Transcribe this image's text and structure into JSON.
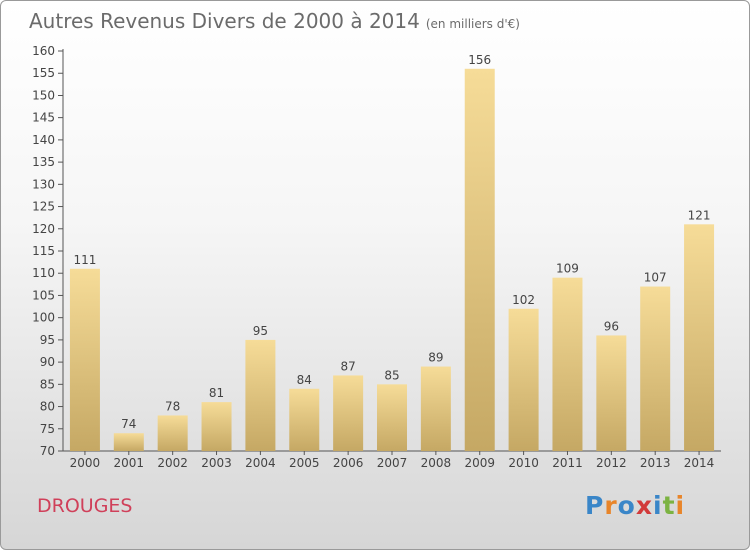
{
  "header": {
    "title": "Autres Revenus Divers de 2000 à 2014",
    "unit": "(en milliers d'€)"
  },
  "footer": {
    "commune": "DROUGES",
    "logo_text": "Proxiti"
  },
  "colors": {
    "bar_light": "#f6dc98",
    "bar_dark": "#c5a864",
    "commune": "#d0405a",
    "logo_letters": [
      "#3a86c8",
      "#e8852a",
      "#3a86c8",
      "#d23a3a",
      "#3a86c8",
      "#7cb342",
      "#e8852a"
    ]
  },
  "chart_data": {
    "type": "bar",
    "title": "Autres Revenus Divers de 2000 à 2014",
    "subtitle": "(en milliers d'€)",
    "categories": [
      "2000",
      "2001",
      "2002",
      "2003",
      "2004",
      "2005",
      "2006",
      "2007",
      "2008",
      "2009",
      "2010",
      "2011",
      "2012",
      "2013",
      "2014"
    ],
    "values": [
      111,
      74,
      78,
      81,
      95,
      84,
      87,
      85,
      89,
      156,
      102,
      109,
      96,
      107,
      121
    ],
    "ylim": [
      70,
      160
    ],
    "ytick_step": 5,
    "grid": false,
    "legend": "none"
  }
}
